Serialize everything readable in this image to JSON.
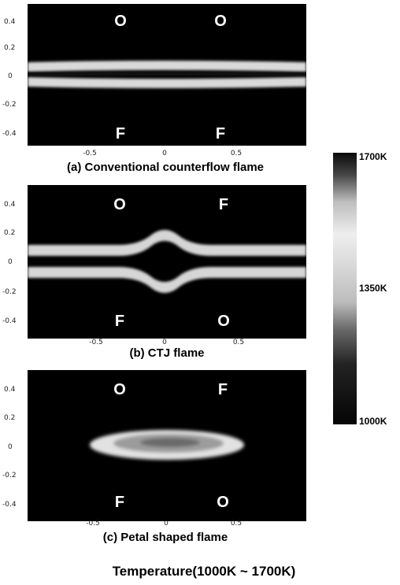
{
  "figure": {
    "caption": "Temperature(1000K ~ 1700K)",
    "colorbar": {
      "labels": [
        "1700K",
        "1350K",
        "1000K"
      ]
    },
    "panels": [
      {
        "label": "(a) Conventional counterflow flame",
        "y_ticks": [
          "0.4",
          "0.2",
          "0",
          "-0.2",
          "-0.4"
        ],
        "x_ticks": [
          "-0.5",
          "0",
          "0.5"
        ],
        "top_regions": [
          "O",
          "O"
        ],
        "bottom_regions": [
          "F",
          "F"
        ]
      },
      {
        "label": "(b) CTJ flame",
        "y_ticks": [
          "0.4",
          "0.2",
          "0",
          "-0.2",
          "-0.4"
        ],
        "x_ticks": [
          "-0.5",
          "0",
          "0.5"
        ],
        "top_regions": [
          "O",
          "F"
        ],
        "bottom_regions": [
          "F",
          "O"
        ]
      },
      {
        "label": "(c) Petal shaped flame",
        "y_ticks": [
          "0.4",
          "0.2",
          "0",
          "-0.2",
          "-0.4"
        ],
        "x_ticks": [
          "-0.5",
          "0",
          "0.5"
        ],
        "top_regions": [
          "O",
          "F"
        ],
        "bottom_regions": [
          "F",
          "O"
        ]
      }
    ]
  }
}
